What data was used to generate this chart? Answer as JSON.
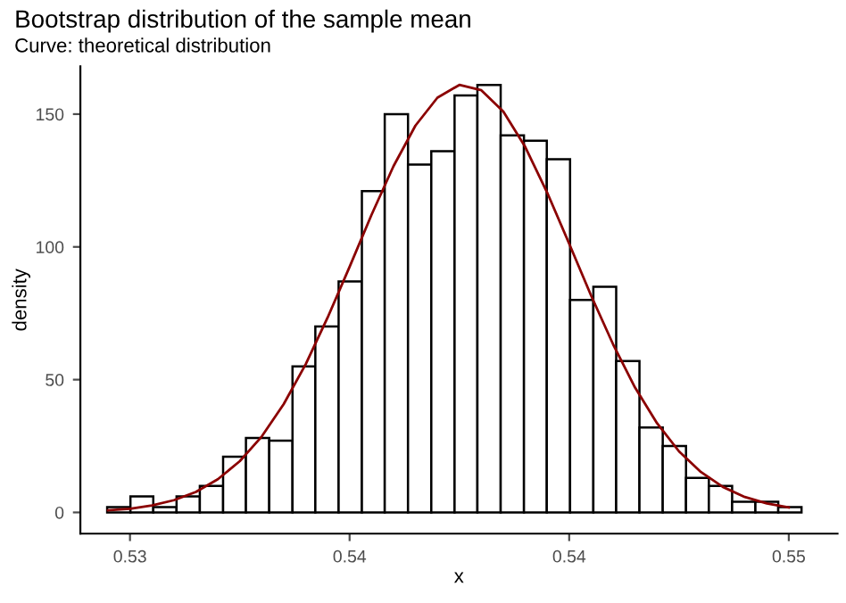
{
  "chart_data": {
    "type": "histogram",
    "title": "Bootstrap distribution of the sample mean",
    "subtitle": "Curve: theoretical distribution",
    "xlabel": "x",
    "ylabel": "density",
    "bins": [
      0.52948,
      0.53001,
      0.53053,
      0.53106,
      0.53159,
      0.53212,
      0.53264,
      0.53317,
      0.5337,
      0.53422,
      0.53475,
      0.53528,
      0.5358,
      0.53633,
      0.53686,
      0.53739,
      0.53791,
      0.53844,
      0.53897,
      0.53949,
      0.54002,
      0.54055,
      0.54107,
      0.5416,
      0.54213,
      0.54266,
      0.54318,
      0.54371,
      0.54424,
      0.54476,
      0.54529
    ],
    "values": [
      2,
      6,
      2,
      6,
      10,
      21,
      28,
      27,
      55,
      70,
      87,
      121,
      150,
      131,
      136,
      157,
      161,
      142,
      140,
      133,
      80,
      85,
      57,
      32,
      25,
      13,
      10,
      4,
      4,
      2
    ],
    "color": "#ffffff",
    "series": [
      {
        "type": "line",
        "color": "#8b0000",
        "x": [
          0.5295,
          0.53,
          0.5305,
          0.531,
          0.5315,
          0.532,
          0.5325,
          0.533,
          0.5335,
          0.534,
          0.5345,
          0.535,
          0.5355,
          0.536,
          0.5365,
          0.537,
          0.5375,
          0.538,
          0.5385,
          0.539,
          0.5395,
          0.54,
          0.5405,
          0.541,
          0.5415,
          0.542,
          0.5425,
          0.543,
          0.5435,
          0.544,
          0.5445,
          0.545
        ],
        "values": [
          0.8,
          1.4,
          2.6,
          4.6,
          7.7,
          12.5,
          19.3,
          28.6,
          40.8,
          55.8,
          73.4,
          92.5,
          112.1,
          130.4,
          145.7,
          156.2,
          161,
          159,
          151,
          137.6,
          120.4,
          101.2,
          81.6,
          63.3,
          47,
          33.6,
          23,
          15.2,
          9.6,
          5.8,
          3.4,
          1.9
        ]
      }
    ],
    "xlim": [
      0.52887,
      0.54611
    ],
    "ylim": [
      -8,
      168
    ],
    "xticks": [
      {
        "value": 0.53,
        "label": "0.53"
      },
      {
        "value": 0.535,
        "label": "0.54"
      },
      {
        "value": 0.54,
        "label": "0.54"
      },
      {
        "value": 0.545,
        "label": "0.55"
      }
    ],
    "yticks": [
      0,
      50,
      100,
      150
    ],
    "grid": false,
    "legend": false
  }
}
